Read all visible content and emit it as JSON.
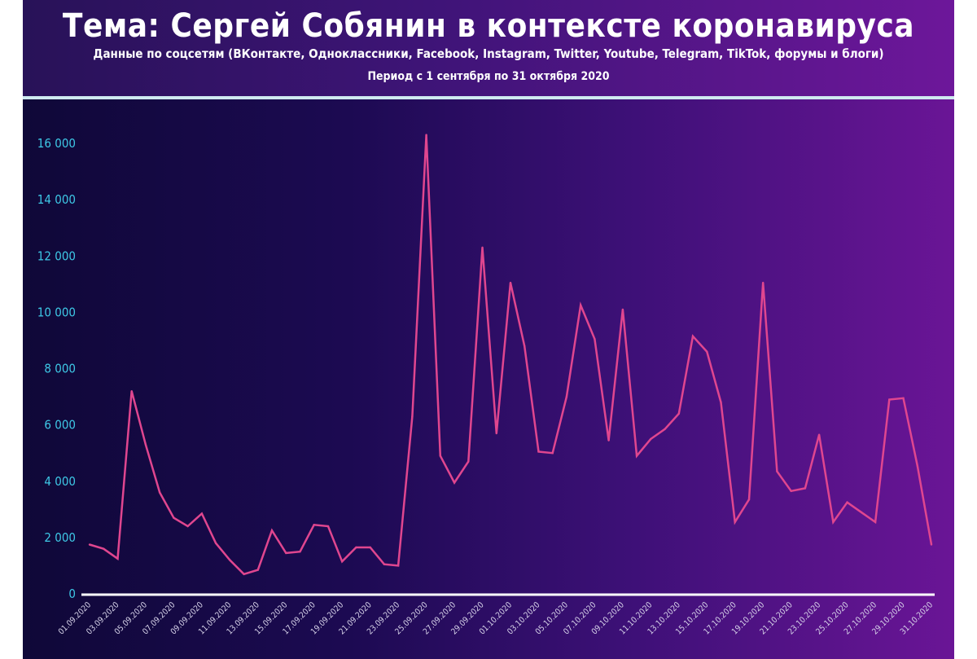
{
  "header": {
    "title": "Тема: Сергей Собянин в контексте коронавируса",
    "subtitle": "Данные по соцсетям (ВКонтакте, Одноклассники, Facebook, Instagram, Twitter, Youtube, Telegram, TikTok, форумы и блоги)",
    "period": "Период с 1 сентября по 31 октября 2020"
  },
  "colors": {
    "line": "#e0468f",
    "ytick": "#3ec8e6",
    "axis": "#ffffff"
  },
  "chart_data": {
    "type": "line",
    "ylim": [
      0,
      16000
    ],
    "yticks": [
      0,
      2000,
      4000,
      6000,
      8000,
      10000,
      12000,
      14000,
      16000
    ],
    "ytick_labels": [
      "0",
      "2 000",
      "4 000",
      "6 000",
      "8 000",
      "10 000",
      "12 000",
      "14 000",
      "16 000"
    ],
    "x": [
      "01.09.2020",
      "02.09.2020",
      "03.09.2020",
      "04.09.2020",
      "05.09.2020",
      "06.09.2020",
      "07.09.2020",
      "08.09.2020",
      "09.09.2020",
      "10.09.2020",
      "11.09.2020",
      "12.09.2020",
      "13.09.2020",
      "14.09.2020",
      "15.09.2020",
      "16.09.2020",
      "17.09.2020",
      "18.09.2020",
      "19.09.2020",
      "20.09.2020",
      "21.09.2020",
      "22.09.2020",
      "23.09.2020",
      "24.09.2020",
      "25.09.2020",
      "26.09.2020",
      "27.09.2020",
      "28.09.2020",
      "29.09.2020",
      "30.09.2020",
      "01.10.2020",
      "02.10.2020",
      "03.10.2020",
      "04.10.2020",
      "05.10.2020",
      "06.10.2020",
      "07.10.2020",
      "08.10.2020",
      "09.10.2020",
      "10.10.2020",
      "11.10.2020",
      "12.10.2020",
      "13.10.2020",
      "14.10.2020",
      "15.10.2020",
      "16.10.2020",
      "17.10.2020",
      "18.10.2020",
      "19.10.2020",
      "20.10.2020",
      "21.10.2020",
      "22.10.2020",
      "23.10.2020",
      "24.10.2020",
      "25.10.2020",
      "26.10.2020",
      "27.10.2020",
      "28.10.2020",
      "29.10.2020",
      "30.10.2020",
      "31.10.2020"
    ],
    "xtick_labels": [
      "01.09.2020",
      "03.09.2020",
      "05.09.2020",
      "07.09.2020",
      "09.09.2020",
      "11.09.2020",
      "13.09.2020",
      "15.09.2020",
      "17.09.2020",
      "19.09.2020",
      "21.09.2020",
      "23.09.2020",
      "25.09.2020",
      "27.09.2020",
      "29.09.2020",
      "01.10.2020",
      "03.10.2020",
      "05.10.2020",
      "07.10.2020",
      "09.10.2020",
      "11.10.2020",
      "13.10.2020",
      "15.10.2020",
      "17.10.2020",
      "19.10.2020",
      "21.10.2020",
      "23.10.2020",
      "25.10.2020",
      "27.10.2020",
      "29.10.2020",
      "31.10.2020"
    ],
    "series": [
      {
        "values": [
          1750,
          1600,
          1250,
          7200,
          5300,
          3600,
          2700,
          2400,
          2850,
          1800,
          1200,
          700,
          850,
          2250,
          1450,
          1500,
          2450,
          2400,
          1150,
          1650,
          1650,
          1050,
          1000,
          6300,
          16300,
          4900,
          3950,
          4700,
          12300,
          5700,
          11050,
          8800,
          5050,
          5000,
          7000,
          10250,
          9050,
          5450,
          10100,
          4900,
          5500,
          5850,
          6400,
          9150,
          8600,
          6800,
          2550,
          3350,
          11050,
          4350,
          3650,
          3750,
          5650,
          2550,
          3250,
          2900,
          2550,
          6900,
          6950,
          4550,
          1750
        ]
      }
    ]
  }
}
